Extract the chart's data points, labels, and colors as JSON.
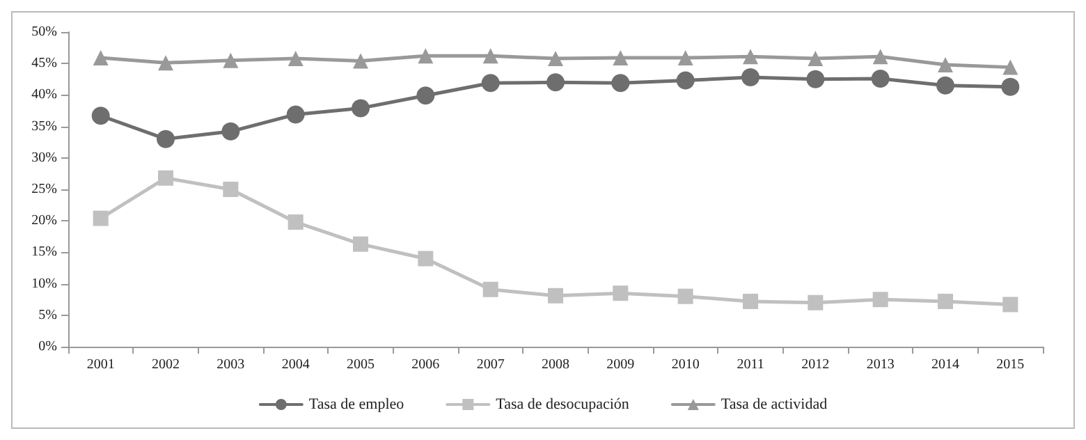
{
  "chart_data": {
    "type": "line",
    "categories": [
      "2001",
      "2002",
      "2003",
      "2004",
      "2005",
      "2006",
      "2007",
      "2008",
      "2009",
      "2010",
      "2011",
      "2012",
      "2013",
      "2014",
      "2015"
    ],
    "series": [
      {
        "name": "Tasa de empleo",
        "color": "#6e6e6e",
        "marker": "circle",
        "values": [
          36.7,
          33.0,
          34.2,
          36.9,
          37.9,
          39.9,
          41.9,
          42.0,
          41.9,
          42.3,
          42.8,
          42.5,
          42.6,
          41.5,
          41.3
        ]
      },
      {
        "name": "Tasa de desocupación",
        "color": "#c0c0c0",
        "marker": "square",
        "values": [
          20.4,
          26.8,
          25.0,
          19.8,
          16.3,
          14.0,
          9.1,
          8.1,
          8.5,
          8.0,
          7.2,
          7.0,
          7.5,
          7.2,
          6.7
        ]
      },
      {
        "name": "Tasa de actividad",
        "color": "#999999",
        "marker": "triangle",
        "values": [
          45.9,
          45.1,
          45.5,
          45.8,
          45.4,
          46.2,
          46.2,
          45.8,
          45.9,
          45.9,
          46.1,
          45.8,
          46.1,
          44.8,
          44.4
        ]
      }
    ],
    "ylim": [
      0,
      50
    ],
    "yticks": [
      {
        "value": 0,
        "label": "0%"
      },
      {
        "value": 5,
        "label": "5%"
      },
      {
        "value": 10,
        "label": "10%"
      },
      {
        "value": 15,
        "label": "15%"
      },
      {
        "value": 20,
        "label": "20%"
      },
      {
        "value": 25,
        "label": "25%"
      },
      {
        "value": 30,
        "label": "30%"
      },
      {
        "value": 35,
        "label": "35%"
      },
      {
        "value": 40,
        "label": "40%"
      },
      {
        "value": 45,
        "label": "45%"
      },
      {
        "value": 50,
        "label": "50%"
      }
    ],
    "grid": false,
    "legend": "bottom",
    "line_style": "solid"
  }
}
